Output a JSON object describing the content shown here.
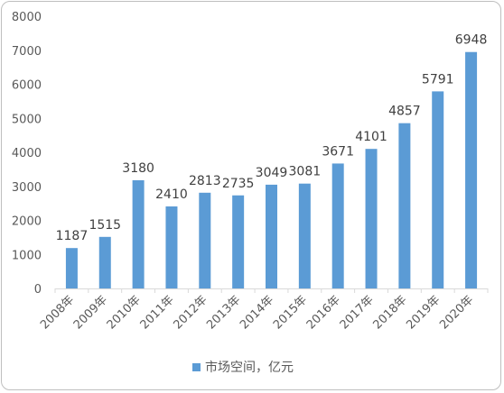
{
  "chart_data": {
    "type": "bar",
    "categories": [
      "2008年",
      "2009年",
      "2010年",
      "2011年",
      "2012年",
      "2013年",
      "2014年",
      "2015年",
      "2016年",
      "2017年",
      "2018年",
      "2019年",
      "2020年"
    ],
    "series": [
      {
        "name": "市场空间，亿元",
        "values": [
          1187,
          1515,
          3180,
          2410,
          2813,
          2735,
          3049,
          3081,
          3671,
          4101,
          4857,
          5791,
          6948
        ],
        "color": "#5B9BD5"
      }
    ],
    "ylim": [
      0,
      8000
    ],
    "yticks": [
      0,
      1000,
      2000,
      3000,
      4000,
      5000,
      6000,
      7000,
      8000
    ],
    "grid": false,
    "legend_position": "bottom",
    "data_labels": true
  }
}
